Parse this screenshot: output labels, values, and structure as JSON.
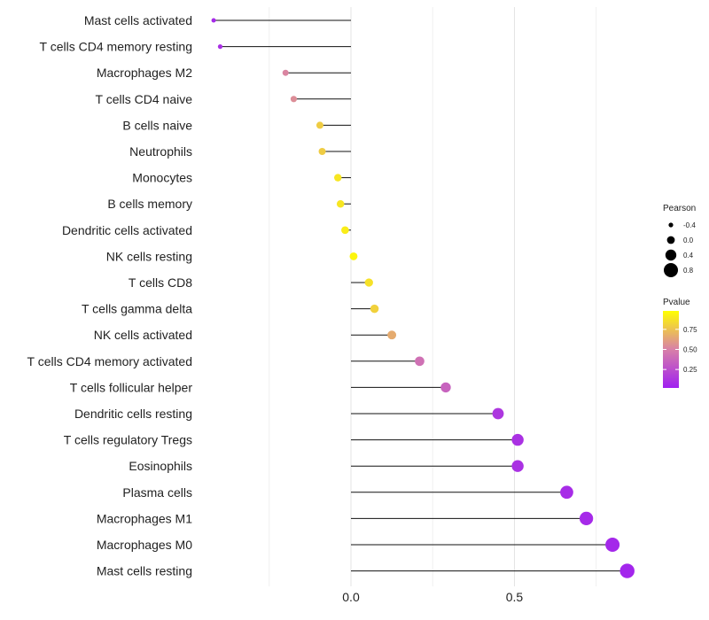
{
  "chart_data": {
    "type": "lollipop",
    "orientation": "horizontal",
    "categories": [
      "Mast cells activated",
      "T cells CD4 memory resting",
      "Macrophages M2",
      "T cells CD4 naive",
      "B cells naive",
      "Neutrophils",
      "Monocytes",
      "B cells memory",
      "Dendritic cells activated",
      "NK cells resting",
      "T cells CD8",
      "T cells gamma delta",
      "NK cells activated",
      "T cells CD4 memory activated",
      "T cells follicular helper",
      "Dendritic cells resting",
      "T cells regulatory  Tregs ",
      "Eosinophils",
      "Plasma cells",
      "Macrophages M1",
      "Macrophages M0",
      "Mast cells resting"
    ],
    "values": [
      -0.42,
      -0.4,
      -0.2,
      -0.175,
      -0.095,
      -0.088,
      -0.04,
      -0.032,
      -0.018,
      0.008,
      0.055,
      0.072,
      0.125,
      0.21,
      0.29,
      0.45,
      0.51,
      0.51,
      0.66,
      0.72,
      0.8,
      0.845
    ],
    "pvalues": [
      0.05,
      0.08,
      0.52,
      0.55,
      0.8,
      0.8,
      0.9,
      0.9,
      0.93,
      0.96,
      0.88,
      0.82,
      0.67,
      0.42,
      0.35,
      0.12,
      0.09,
      0.09,
      0.06,
      0.05,
      0.04,
      0.03
    ],
    "xlim": [
      -0.45,
      0.9
    ],
    "x_ticks": [
      0.0,
      0.5
    ],
    "x_tick_labels": [
      "0.0",
      "0.5"
    ],
    "minor_gridlines": [
      -0.25,
      0.25,
      0.75
    ],
    "xlabel": "",
    "ylabel": "",
    "legend_size": {
      "title": "Pearson",
      "labels": [
        "-0.4",
        "0.0",
        "0.4",
        "0.8"
      ],
      "values": [
        -0.4,
        0.0,
        0.4,
        0.8
      ]
    },
    "legend_color": {
      "title": "Pvalue",
      "labels": [
        "0.75",
        "0.50",
        "0.25"
      ],
      "values": [
        0.75,
        0.5,
        0.25
      ],
      "range": [
        0.02,
        0.98
      ],
      "color_low": "#a020f0",
      "color_mid": "#d880a8",
      "color_high": "#ffff00"
    }
  }
}
